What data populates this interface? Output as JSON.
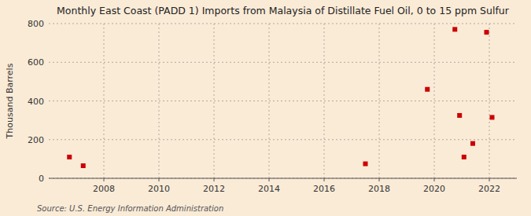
{
  "chart_data": {
    "type": "scatter",
    "title": "Monthly East Coast (PADD 1) Imports from Malaysia of Distillate Fuel Oil, 0 to 15 ppm Sulfur",
    "ylabel": "Thousand Barrels",
    "source": "Source: U.S. Energy Information Administration",
    "x": [
      2006.75,
      2007.25,
      2017.5,
      2019.75,
      2020.75,
      2020.92,
      2021.08,
      2021.4,
      2021.9,
      2022.1
    ],
    "values": [
      110,
      65,
      75,
      460,
      770,
      325,
      110,
      180,
      755,
      315
    ],
    "color": "#cc0000",
    "marker": "square",
    "xlim": [
      2006,
      2023
    ],
    "ylim": [
      0,
      800
    ],
    "xticks": [
      2008,
      2010,
      2012,
      2014,
      2016,
      2018,
      2020,
      2022
    ],
    "yticks": [
      0,
      200,
      400,
      600,
      800
    ],
    "grid": true
  }
}
